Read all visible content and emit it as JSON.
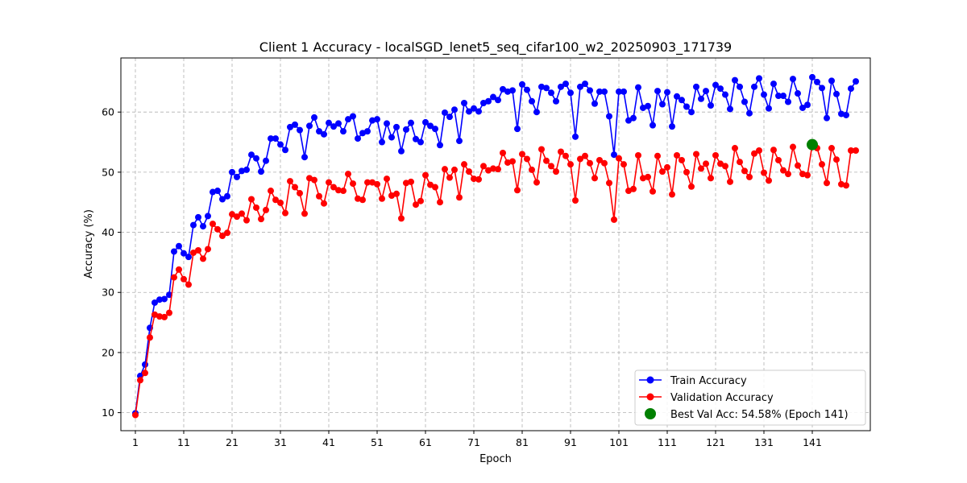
{
  "chart_data": {
    "type": "line",
    "title": "Client 1 Accuracy - localSGD_lenet5_seq_cifar100_w2_20250903_171739",
    "xlabel": "Epoch",
    "ylabel": "Accuracy (%)",
    "xlim": [
      -2,
      153
    ],
    "ylim": [
      7,
      69
    ],
    "xticks": [
      1,
      11,
      21,
      31,
      41,
      51,
      61,
      71,
      81,
      91,
      101,
      111,
      121,
      131,
      141
    ],
    "yticks": [
      10,
      20,
      30,
      40,
      50,
      60
    ],
    "grid": true,
    "legend_position": "lower-right",
    "series": [
      {
        "name": "Train Accuracy",
        "color": "#0000ff",
        "values": [
          9.9,
          16.1,
          18.0,
          24.1,
          28.3,
          28.8,
          28.9,
          29.6,
          36.8,
          37.7,
          36.5,
          35.9,
          41.2,
          42.5,
          41.0,
          42.7,
          46.7,
          46.9,
          45.5,
          46.0,
          50.0,
          49.2,
          50.2,
          50.4,
          52.9,
          52.3,
          50.1,
          51.9,
          55.6,
          55.6,
          54.6,
          53.7,
          57.5,
          57.9,
          57.0,
          52.5,
          57.7,
          59.1,
          56.8,
          56.3,
          58.2,
          57.6,
          58.1,
          56.8,
          58.8,
          59.3,
          55.6,
          56.5,
          56.8,
          58.6,
          58.8,
          55.0,
          58.1,
          55.8,
          57.5,
          53.5,
          57.1,
          58.2,
          55.5,
          55.0,
          58.3,
          57.7,
          57.2,
          54.5,
          59.9,
          59.2,
          60.4,
          55.2,
          61.5,
          60.1,
          60.6,
          60.1,
          61.5,
          61.8,
          62.5,
          62.0,
          63.8,
          63.4,
          63.6,
          57.2,
          64.6,
          63.7,
          61.8,
          60.0,
          64.2,
          64.0,
          63.2,
          61.8,
          64.2,
          64.7,
          63.2,
          55.9,
          64.2,
          64.7,
          63.6,
          61.4,
          63.4,
          63.4,
          59.3,
          52.9,
          63.4,
          63.4,
          58.6,
          59.0,
          64.1,
          60.7,
          61.0,
          57.8,
          63.5,
          61.3,
          63.3,
          57.6,
          62.6,
          62.0,
          60.9,
          60.0,
          64.2,
          62.2,
          63.5,
          61.1,
          64.5,
          63.9,
          62.9,
          60.5,
          65.3,
          64.2,
          61.7,
          59.8,
          64.2,
          65.6,
          62.9,
          60.6,
          64.7,
          62.7,
          62.7,
          61.7,
          65.5,
          63.1,
          60.7,
          61.2,
          65.8,
          65.0,
          64.0,
          59.0,
          65.2,
          63.0,
          59.7,
          59.5,
          63.9,
          65.1
        ]
      },
      {
        "name": "Validation Accuracy",
        "color": "#ff0000",
        "values": [
          9.6,
          15.4,
          16.6,
          22.5,
          26.3,
          26.0,
          25.9,
          26.6,
          32.5,
          33.8,
          32.2,
          31.3,
          36.6,
          37.0,
          35.6,
          37.2,
          41.4,
          40.5,
          39.4,
          39.9,
          43.0,
          42.6,
          43.1,
          42.0,
          45.5,
          44.1,
          42.2,
          43.7,
          46.9,
          45.4,
          44.9,
          43.2,
          48.5,
          47.5,
          46.5,
          43.1,
          49.0,
          48.7,
          46.0,
          44.8,
          48.3,
          47.5,
          47.0,
          46.9,
          49.7,
          48.1,
          45.6,
          45.4,
          48.3,
          48.3,
          48.0,
          45.6,
          48.9,
          46.1,
          46.4,
          42.3,
          48.2,
          48.4,
          44.6,
          45.2,
          49.5,
          47.9,
          47.5,
          45.0,
          50.5,
          49.1,
          50.4,
          45.8,
          51.3,
          50.1,
          48.9,
          48.8,
          51.0,
          50.3,
          50.6,
          50.5,
          53.2,
          51.6,
          51.8,
          47.0,
          53.0,
          52.2,
          50.4,
          48.3,
          53.8,
          51.9,
          51.0,
          50.1,
          53.4,
          52.7,
          51.3,
          45.3,
          52.2,
          52.7,
          51.5,
          49.0,
          52.0,
          51.5,
          48.2,
          42.1,
          52.3,
          51.3,
          46.9,
          47.2,
          52.8,
          49.0,
          49.2,
          46.8,
          52.7,
          50.1,
          50.8,
          46.3,
          52.8,
          52.0,
          50.0,
          47.6,
          53.0,
          50.6,
          51.4,
          49.0,
          52.8,
          51.4,
          51.0,
          48.4,
          54.0,
          51.7,
          50.2,
          49.2,
          53.1,
          53.6,
          49.9,
          48.6,
          53.7,
          52.0,
          50.3,
          49.7,
          54.2,
          51.1,
          49.7,
          49.5,
          54.6,
          54.0,
          51.3,
          48.2,
          54.0,
          52.1,
          48.0,
          47.8,
          53.6,
          53.6
        ]
      }
    ],
    "best": {
      "label": "Best Val Acc: 54.58% (Epoch 141)",
      "epoch": 141,
      "value": 54.58,
      "color": "#008000"
    }
  }
}
